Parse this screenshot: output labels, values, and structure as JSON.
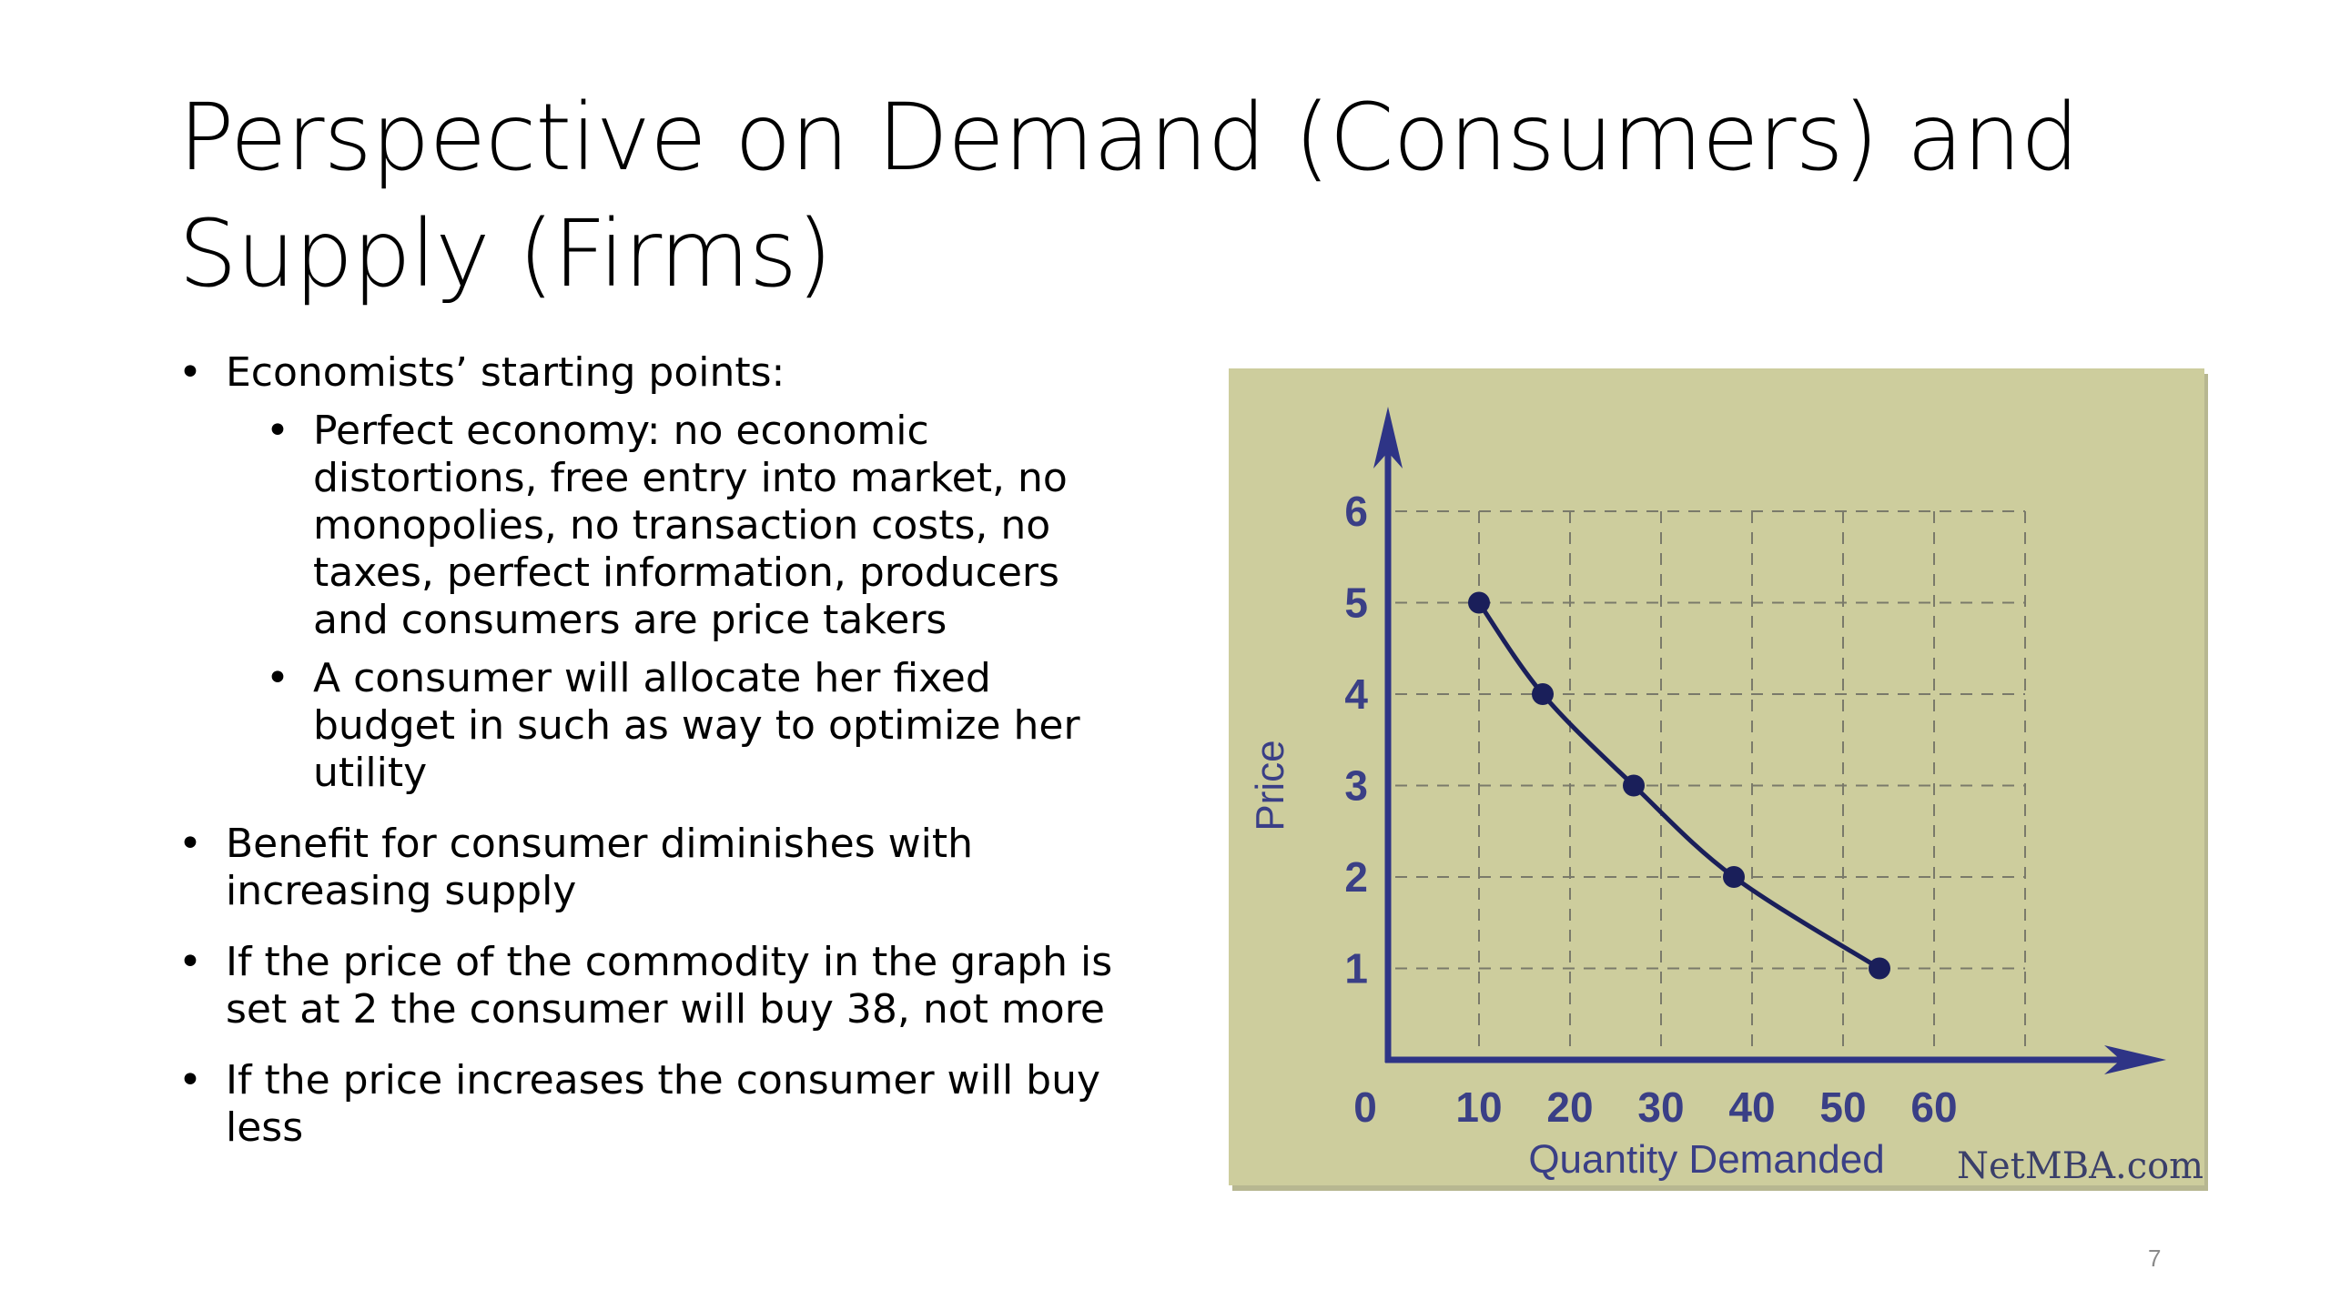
{
  "title": "Perspective on Demand (Consumers) and Supply (Firms)",
  "bullets": {
    "b1": "Economists’ starting points:",
    "b1_sub1": "Perfect economy: no economic distortions, free entry into market, no monopolies, no transaction costs, no taxes, perfect information, producers and consumers are price takers",
    "b1_sub2": "A consumer will allocate her fixed budget in such as way to optimize her utility",
    "b2": "Benefit for consumer diminishes with increasing supply",
    "b3": "If the price of the commodity in the graph is set at 2 the consumer will buy 38, not more",
    "b4": "If the price increases the consumer will buy less"
  },
  "chart_data": {
    "type": "line",
    "xlabel": "Quantity Demanded",
    "ylabel": "Price",
    "origin_label": "0",
    "x_ticks": [
      "10",
      "20",
      "30",
      "40",
      "50",
      "60"
    ],
    "y_ticks": [
      "1",
      "2",
      "3",
      "4",
      "5",
      "6"
    ],
    "xlim": [
      0,
      70
    ],
    "ylim": [
      0,
      7
    ],
    "grid": true,
    "series": [
      {
        "x": [
          10,
          17,
          27,
          38,
          54
        ],
        "y": [
          5,
          4,
          3,
          2,
          1
        ]
      }
    ],
    "credit": "NetMBA.com",
    "colors": {
      "background": "#cdcd9d",
      "axis": "#2e3486",
      "label": "#3a3f86",
      "curve": "#1a1f5a",
      "grid": "#7a7a6a"
    }
  },
  "page_number": "7"
}
